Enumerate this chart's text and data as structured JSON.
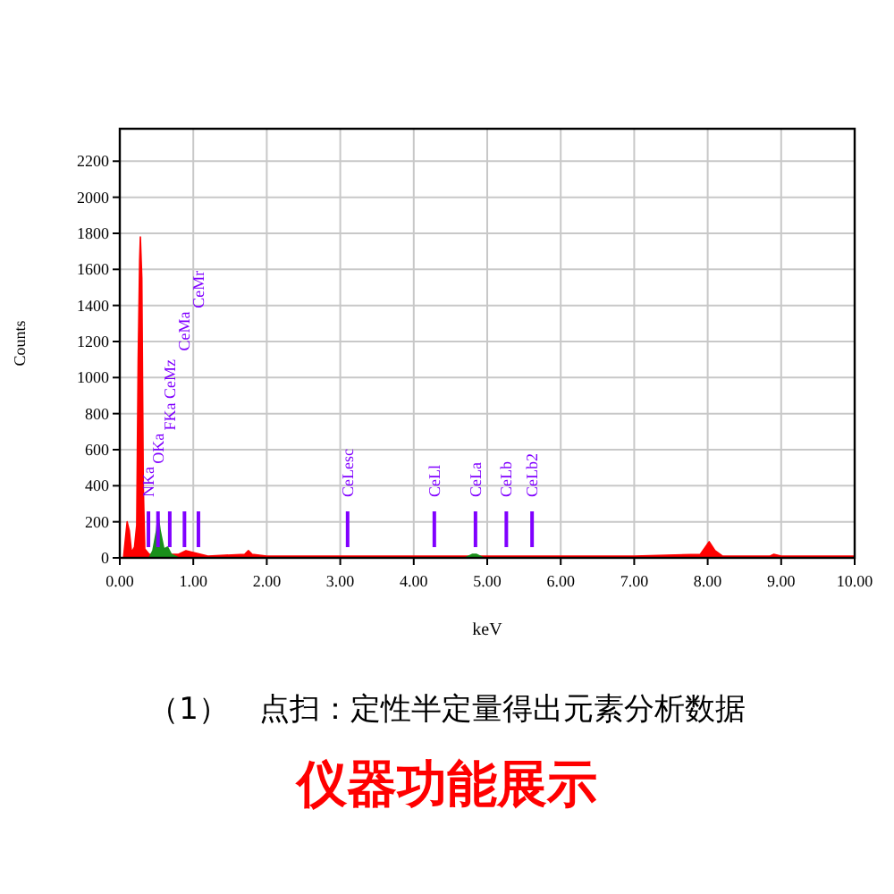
{
  "chart_data": {
    "type": "area",
    "xlabel": "keV",
    "ylabel": "Counts",
    "xlim": [
      0,
      10
    ],
    "ylim": [
      0,
      2380
    ],
    "xticks": [
      {
        "value": 0,
        "label": "0.00"
      },
      {
        "value": 1,
        "label": "1.00"
      },
      {
        "value": 2,
        "label": "2.00"
      },
      {
        "value": 3,
        "label": "3.00"
      },
      {
        "value": 4,
        "label": "4.00"
      },
      {
        "value": 5,
        "label": "5.00"
      },
      {
        "value": 6,
        "label": "6.00"
      },
      {
        "value": 7,
        "label": "7.00"
      },
      {
        "value": 8,
        "label": "8.00"
      },
      {
        "value": 9,
        "label": "9.00"
      },
      {
        "value": 10,
        "label": "10.00"
      }
    ],
    "yticks": [
      0,
      200,
      400,
      600,
      800,
      1000,
      1200,
      1400,
      1600,
      1800,
      2000,
      2200
    ],
    "grid": true,
    "series": [
      {
        "color": "#ff0000",
        "x": [
          0.05,
          0.1,
          0.13,
          0.16,
          0.2,
          0.23,
          0.25,
          0.27,
          0.28,
          0.3,
          0.32,
          0.34,
          0.4,
          0.5,
          0.8,
          0.9,
          1.0,
          1.2,
          1.7,
          1.75,
          1.8,
          2.0,
          3.0,
          5.0,
          7.0,
          7.9,
          8.02,
          8.1,
          8.2,
          8.85,
          8.9,
          9.0,
          10.0
        ],
        "values": [
          0,
          200,
          150,
          30,
          60,
          180,
          1100,
          1650,
          1780,
          1550,
          400,
          50,
          20,
          20,
          20,
          40,
          30,
          10,
          20,
          40,
          20,
          10,
          10,
          10,
          10,
          20,
          90,
          40,
          10,
          10,
          20,
          10,
          10
        ]
      },
      {
        "color": "#1a8f1a",
        "x": [
          0.4,
          0.45,
          0.5,
          0.52,
          0.55,
          0.6,
          0.65,
          0.7,
          0.8,
          2.0,
          4.7,
          4.8,
          4.85,
          4.95
        ],
        "values": [
          0,
          40,
          150,
          240,
          150,
          50,
          60,
          20,
          0,
          null,
          0,
          20,
          20,
          0
        ]
      }
    ],
    "ref_lines": [
      {
        "axis": "x",
        "value": 0.39,
        "label": "NKa",
        "color": "#8000ff"
      },
      {
        "axis": "x",
        "value": 0.52,
        "label": "OKa",
        "color": "#8000ff"
      },
      {
        "axis": "x",
        "value": 0.68,
        "label": "FKa CeMz",
        "color": "#8000ff"
      },
      {
        "axis": "x",
        "value": 0.88,
        "label": "CeMa",
        "color": "#8000ff"
      },
      {
        "axis": "x",
        "value": 1.07,
        "label": "CeMr",
        "color": "#8000ff"
      },
      {
        "axis": "x",
        "value": 3.1,
        "label": "CeLesc",
        "color": "#8000ff"
      },
      {
        "axis": "x",
        "value": 4.28,
        "label": "CeLl",
        "color": "#8000ff"
      },
      {
        "axis": "x",
        "value": 4.84,
        "label": "CeLa",
        "color": "#8000ff"
      },
      {
        "axis": "x",
        "value": 5.26,
        "label": "CeLb",
        "color": "#8000ff"
      },
      {
        "axis": "x",
        "value": 5.61,
        "label": "CeLb2",
        "color": "#8000ff"
      }
    ],
    "annotations": [
      "（1）　点扫：定性半定量得出元素分析数据",
      "仪器功能展示"
    ]
  }
}
